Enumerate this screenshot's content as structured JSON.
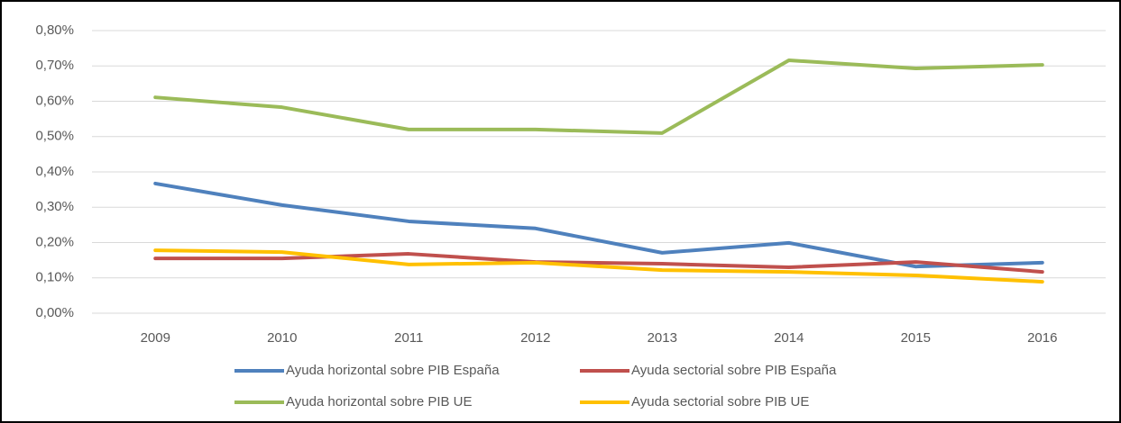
{
  "chart_data": {
    "type": "line",
    "categories": [
      "2009",
      "2010",
      "2011",
      "2012",
      "2013",
      "2014",
      "2015",
      "2016"
    ],
    "series": [
      {
        "name": "Ayuda horizontal sobre PIB España",
        "color": "#4f81bd",
        "values": [
          0.367,
          0.306,
          0.26,
          0.24,
          0.171,
          0.199,
          0.132,
          0.143
        ]
      },
      {
        "name": "Ayuda sectorial sobre PIB España",
        "color": "#c0504d",
        "values": [
          0.155,
          0.155,
          0.168,
          0.145,
          0.14,
          0.13,
          0.145,
          0.117
        ]
      },
      {
        "name": "Ayuda horizontal sobre PIB UE",
        "color": "#9bbb59",
        "values": [
          0.611,
          0.583,
          0.52,
          0.52,
          0.51,
          0.716,
          0.693,
          0.703
        ]
      },
      {
        "name": "Ayuda sectorial sobre PIB UE",
        "color": "#ffc000",
        "values": [
          0.178,
          0.173,
          0.138,
          0.143,
          0.122,
          0.117,
          0.107,
          0.089
        ]
      }
    ],
    "ylim": [
      0,
      0.8
    ],
    "yticks": [
      {
        "value": 0,
        "label": "0,00%"
      },
      {
        "value": 0.1,
        "label": "0,10%"
      },
      {
        "value": 0.2,
        "label": "0,20%"
      },
      {
        "value": 0.3,
        "label": "0,30%"
      },
      {
        "value": 0.4,
        "label": "0,40%"
      },
      {
        "value": 0.5,
        "label": "0,50%"
      },
      {
        "value": 0.6,
        "label": "0,60%"
      },
      {
        "value": 0.7,
        "label": "0,70%"
      },
      {
        "value": 0.8,
        "label": "0,80%"
      }
    ],
    "grid": true
  }
}
